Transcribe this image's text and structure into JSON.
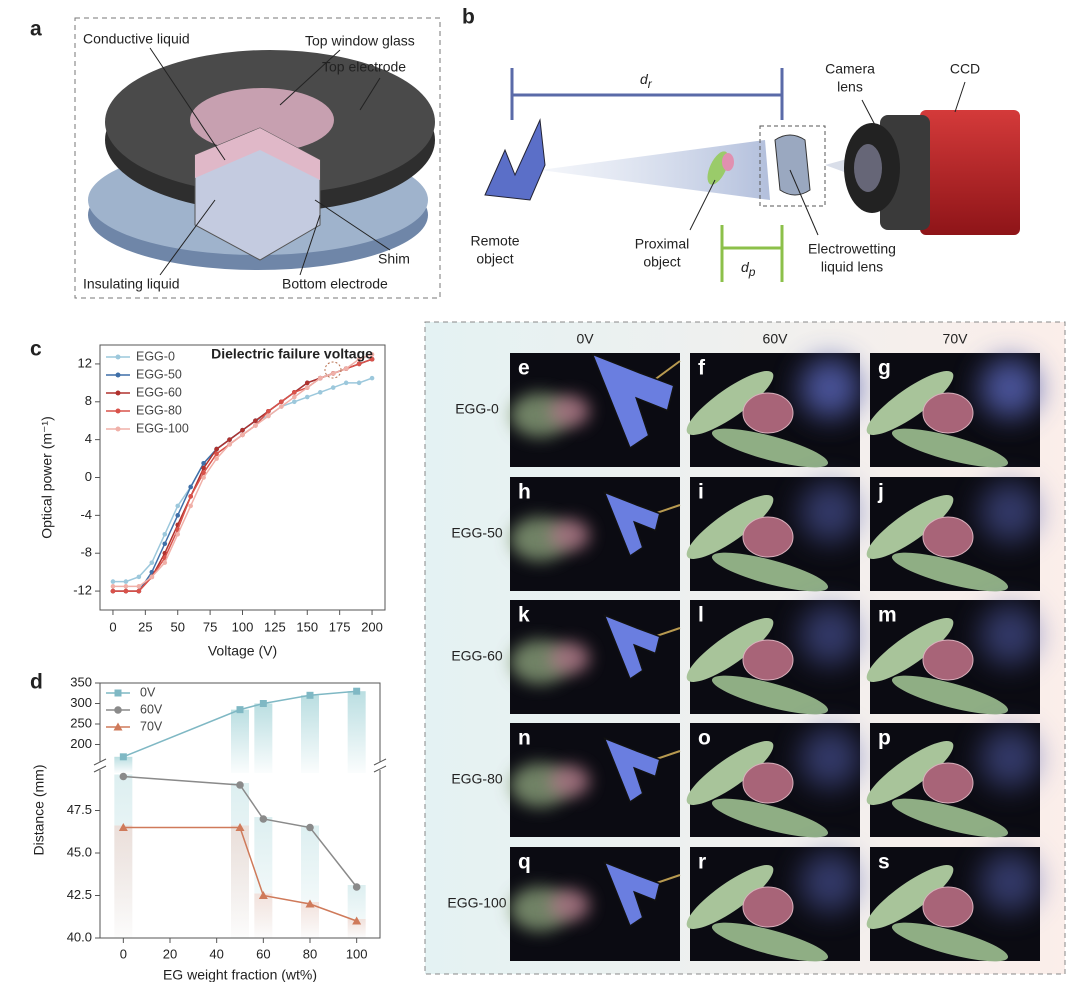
{
  "panel_labels": [
    "a",
    "b",
    "c",
    "d"
  ],
  "diagram_a": {
    "labels": [
      "Conductive liquid",
      "Top window glass",
      "Top electrode",
      "Shim",
      "Insulating liquid",
      "Bottom electrode"
    ]
  },
  "diagram_b": {
    "remote_distance": {
      "symbol": "d",
      "subscript": "r"
    },
    "proximal_distance": {
      "symbol": "d",
      "subscript": "p"
    },
    "camera_lens": {
      "lines": [
        "Camera",
        "lens"
      ]
    },
    "ccd": "CCD",
    "remote_object": {
      "lines": [
        "Remote",
        "object"
      ]
    },
    "proximal_object": {
      "lines": [
        "Proximal",
        "object"
      ]
    },
    "liquid_lens": {
      "lines": [
        "Electrowetting",
        "liquid lens"
      ]
    }
  },
  "chart_data": [
    {
      "type": "line",
      "xlabel": "Voltage (V)",
      "ylabel": "Optical power (m⁻¹)",
      "annotation": "Dielectric failure voltage",
      "x": [
        0,
        10,
        20,
        30,
        40,
        50,
        60,
        70,
        80,
        90,
        100,
        110,
        120,
        130,
        140,
        150,
        160,
        170,
        180,
        190,
        200
      ],
      "series": [
        {
          "name": "EGG-0",
          "color": "#9cc8dc",
          "values": [
            -11,
            -11,
            -10.5,
            -9,
            -6,
            -3,
            -1,
            1.5,
            3,
            4,
            5,
            6,
            6.5,
            7.5,
            8,
            8.5,
            9,
            9.5,
            10,
            10,
            10.5
          ]
        },
        {
          "name": "EGG-50",
          "color": "#3f6fa8",
          "values": [
            -12,
            -12,
            -12,
            -10,
            -7,
            -4,
            -1,
            1.5,
            3,
            4,
            5,
            6,
            7,
            8,
            9,
            10,
            10.5,
            11,
            11.5,
            12,
            12.5
          ]
        },
        {
          "name": "EGG-60",
          "color": "#b0322e",
          "values": [
            -12,
            -12,
            -12,
            -10.5,
            -8,
            -5,
            -2,
            1,
            3,
            4,
            5,
            6,
            7,
            8,
            9,
            10,
            10.5,
            11,
            11.5,
            12,
            12.5
          ]
        },
        {
          "name": "EGG-80",
          "color": "#d9524a",
          "values": [
            -12,
            -12,
            -12,
            -10.5,
            -8.5,
            -5.5,
            -2,
            0.5,
            2.5,
            3.5,
            4.5,
            5.5,
            7,
            8,
            9,
            9.5,
            10.5,
            11,
            11.5,
            12,
            12.5
          ]
        },
        {
          "name": "EGG-100",
          "color": "#f0b0a8",
          "values": [
            -11.5,
            -11.5,
            -11.5,
            -10.5,
            -9,
            -6,
            -3,
            0,
            2,
            3.5,
            4.5,
            5.5,
            6.5,
            7.5,
            8.5,
            9.5,
            10.5,
            11,
            11.5,
            12.5,
            13
          ]
        }
      ],
      "xlim": [
        -10,
        210
      ],
      "xticks": [
        0,
        25,
        50,
        75,
        100,
        125,
        150,
        175,
        200
      ],
      "ylim": [
        -14,
        14
      ],
      "yticks": [
        -12,
        -8,
        -4,
        0,
        4,
        8,
        12
      ],
      "legend": "upper left"
    },
    {
      "type": "line",
      "xlabel": "EG weight fraction (wt%)",
      "ylabel": "Distance (mm)",
      "x": [
        0,
        50,
        60,
        80,
        100
      ],
      "series": [
        {
          "name": "0V",
          "color": "#7fb8c4",
          "marker": "square",
          "axis": "y2",
          "values": [
            170,
            285,
            300,
            320,
            330
          ]
        },
        {
          "name": "60V",
          "color": "#8a8a8a",
          "marker": "circle",
          "values": [
            49.5,
            49,
            47,
            46.5,
            43
          ]
        },
        {
          "name": "70V",
          "color": "#cf7a5a",
          "marker": "triangle",
          "values": [
            46.5,
            46.5,
            42.5,
            42,
            41
          ]
        }
      ],
      "xlim": [
        -10,
        110
      ],
      "xticks": [
        0,
        20,
        40,
        60,
        80,
        100
      ],
      "ylim": [
        40,
        50
      ],
      "yticks": [
        {
          "value": 40,
          "label": "40.0"
        },
        42.5,
        {
          "value": 45,
          "label": "45.0"
        },
        47.5
      ],
      "y2lim": [
        150,
        350
      ],
      "y2ticks": [
        200,
        250,
        300,
        350
      ],
      "legend": "upper left"
    }
  ],
  "image_grid": {
    "columns": [
      "0V",
      "60V",
      "70V"
    ],
    "rows": [
      "EGG-0",
      "EGG-50",
      "EGG-60",
      "EGG-80",
      "EGG-100"
    ],
    "panel_letters": [
      "e",
      "f",
      "g",
      "h",
      "i",
      "j",
      "k",
      "l",
      "m",
      "n",
      "o",
      "p",
      "q",
      "r",
      "s"
    ]
  }
}
